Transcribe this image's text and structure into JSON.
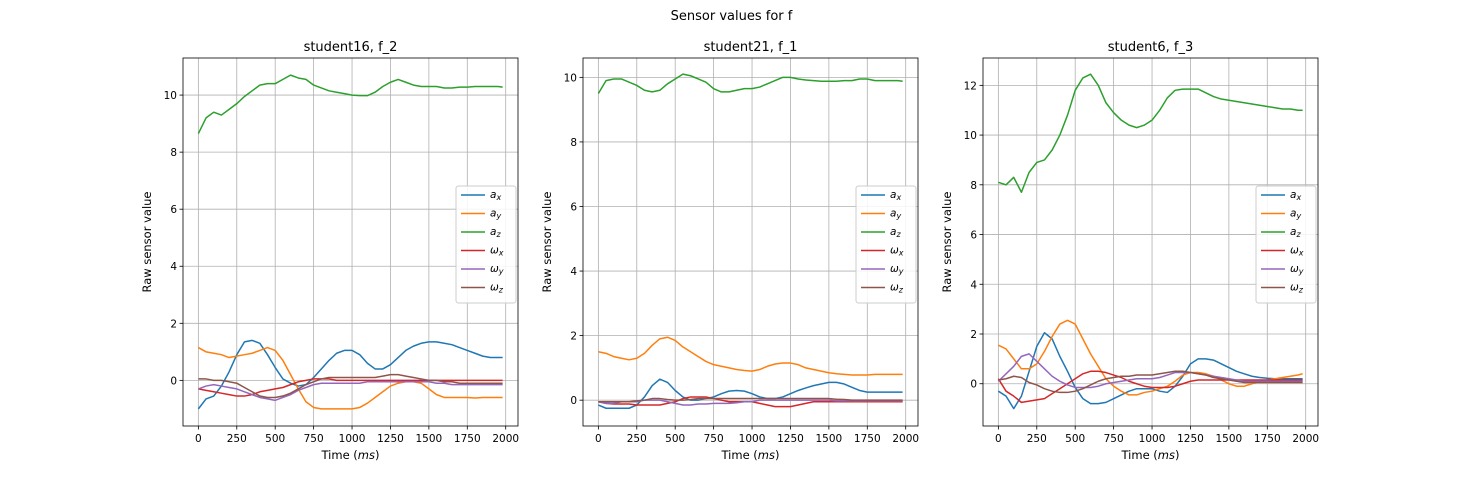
{
  "suptitle": "Sensor values for f",
  "colors": {
    "a_x": "#1f77b4",
    "a_y": "#ff7f0e",
    "a_z": "#2ca02c",
    "w_x": "#d62728",
    "w_y": "#9467bd",
    "w_z": "#8c564b"
  },
  "chart_data": [
    {
      "type": "line",
      "title": "student16, f_2",
      "xlabel": "Time (ms)",
      "ylabel": "Raw sensor value",
      "xlim": [
        -100,
        2080
      ],
      "ylim": [
        -1.6,
        11.3
      ],
      "xticks": [
        0,
        250,
        500,
        750,
        1000,
        1250,
        1500,
        1750,
        2000
      ],
      "yticks": [
        0,
        2,
        4,
        6,
        8,
        10
      ],
      "grid": true,
      "legend": "center-right",
      "x": [
        0,
        50,
        100,
        150,
        200,
        250,
        300,
        350,
        400,
        450,
        500,
        550,
        600,
        650,
        700,
        750,
        800,
        850,
        900,
        950,
        1000,
        1050,
        1100,
        1150,
        1200,
        1250,
        1300,
        1350,
        1400,
        1450,
        1500,
        1550,
        1600,
        1650,
        1700,
        1750,
        1800,
        1850,
        1900,
        1950,
        1980
      ],
      "series": [
        {
          "name": "a_x",
          "values": [
            -1.0,
            -0.65,
            -0.55,
            -0.2,
            0.3,
            0.9,
            1.35,
            1.4,
            1.3,
            0.9,
            0.45,
            0.05,
            -0.1,
            -0.2,
            -0.15,
            0.1,
            0.4,
            0.7,
            0.95,
            1.05,
            1.05,
            0.9,
            0.6,
            0.4,
            0.4,
            0.55,
            0.8,
            1.05,
            1.2,
            1.3,
            1.35,
            1.35,
            1.3,
            1.25,
            1.15,
            1.05,
            0.95,
            0.85,
            0.8,
            0.8,
            0.8
          ]
        },
        {
          "name": "a_y",
          "values": [
            1.15,
            1.0,
            0.95,
            0.9,
            0.8,
            0.85,
            0.9,
            0.95,
            1.05,
            1.15,
            1.05,
            0.7,
            0.2,
            -0.3,
            -0.75,
            -0.95,
            -1.0,
            -1.0,
            -1.0,
            -1.0,
            -1.0,
            -0.95,
            -0.8,
            -0.6,
            -0.4,
            -0.2,
            -0.1,
            -0.05,
            -0.05,
            -0.1,
            -0.3,
            -0.5,
            -0.6,
            -0.6,
            -0.6,
            -0.6,
            -0.62,
            -0.6,
            -0.6,
            -0.6,
            -0.6
          ]
        },
        {
          "name": "a_z",
          "values": [
            8.65,
            9.2,
            9.4,
            9.3,
            9.5,
            9.7,
            9.95,
            10.15,
            10.35,
            10.4,
            10.4,
            10.55,
            10.7,
            10.6,
            10.55,
            10.35,
            10.25,
            10.15,
            10.1,
            10.05,
            10.0,
            9.98,
            9.98,
            10.1,
            10.3,
            10.45,
            10.55,
            10.45,
            10.35,
            10.3,
            10.3,
            10.3,
            10.25,
            10.25,
            10.28,
            10.28,
            10.3,
            10.3,
            10.3,
            10.3,
            10.28
          ]
        },
        {
          "name": "w_x",
          "values": [
            -0.3,
            -0.35,
            -0.4,
            -0.45,
            -0.5,
            -0.55,
            -0.55,
            -0.5,
            -0.4,
            -0.35,
            -0.3,
            -0.25,
            -0.15,
            -0.05,
            0.0,
            0.05,
            0.05,
            0.05,
            0.0,
            0.0,
            0.0,
            0.0,
            0.0,
            0.0,
            0.0,
            0.0,
            0.0,
            0.0,
            0.0,
            0.0,
            0.0,
            0.0,
            0.0,
            0.0,
            0.0,
            0.0,
            0.0,
            0.0,
            0.0,
            0.0,
            0.0
          ]
        },
        {
          "name": "w_y",
          "values": [
            -0.3,
            -0.2,
            -0.15,
            -0.2,
            -0.25,
            -0.3,
            -0.4,
            -0.5,
            -0.6,
            -0.65,
            -0.7,
            -0.6,
            -0.5,
            -0.35,
            -0.25,
            -0.15,
            -0.1,
            -0.1,
            -0.1,
            -0.1,
            -0.1,
            -0.1,
            -0.05,
            -0.05,
            -0.05,
            -0.05,
            -0.05,
            -0.05,
            -0.05,
            -0.05,
            -0.05,
            -0.1,
            -0.1,
            -0.15,
            -0.15,
            -0.15,
            -0.15,
            -0.15,
            -0.15,
            -0.15,
            -0.15
          ]
        },
        {
          "name": "w_z",
          "values": [
            0.05,
            0.05,
            0.0,
            0.0,
            -0.05,
            -0.1,
            -0.25,
            -0.4,
            -0.55,
            -0.6,
            -0.6,
            -0.55,
            -0.45,
            -0.3,
            -0.15,
            -0.05,
            0.05,
            0.1,
            0.1,
            0.1,
            0.1,
            0.1,
            0.1,
            0.1,
            0.15,
            0.2,
            0.2,
            0.15,
            0.1,
            0.05,
            0.0,
            0.0,
            -0.05,
            -0.05,
            -0.1,
            -0.1,
            -0.1,
            -0.1,
            -0.1,
            -0.1,
            -0.1
          ]
        }
      ]
    },
    {
      "type": "line",
      "title": "student21, f_1",
      "xlabel": "Time (ms)",
      "ylabel": "Raw sensor value",
      "xlim": [
        -100,
        2080
      ],
      "ylim": [
        -0.8,
        10.6
      ],
      "xticks": [
        0,
        250,
        500,
        750,
        1000,
        1250,
        1500,
        1750,
        2000
      ],
      "yticks": [
        0,
        2,
        4,
        6,
        8,
        10
      ],
      "grid": true,
      "legend": "center-right",
      "x": [
        0,
        50,
        100,
        150,
        200,
        250,
        300,
        350,
        400,
        450,
        500,
        550,
        600,
        650,
        700,
        750,
        800,
        850,
        900,
        950,
        1000,
        1050,
        1100,
        1150,
        1200,
        1250,
        1300,
        1350,
        1400,
        1450,
        1500,
        1550,
        1600,
        1650,
        1700,
        1750,
        1800,
        1850,
        1900,
        1950,
        1980
      ],
      "series": [
        {
          "name": "a_x",
          "values": [
            -0.15,
            -0.25,
            -0.25,
            -0.25,
            -0.25,
            -0.15,
            0.1,
            0.45,
            0.65,
            0.55,
            0.3,
            0.1,
            0.0,
            0.0,
            0.05,
            0.1,
            0.2,
            0.28,
            0.3,
            0.28,
            0.2,
            0.1,
            0.05,
            0.05,
            0.1,
            0.2,
            0.3,
            0.38,
            0.45,
            0.5,
            0.55,
            0.55,
            0.5,
            0.4,
            0.3,
            0.25,
            0.25,
            0.25,
            0.25,
            0.25,
            0.25
          ]
        },
        {
          "name": "a_y",
          "values": [
            1.5,
            1.45,
            1.35,
            1.3,
            1.25,
            1.3,
            1.45,
            1.7,
            1.9,
            1.95,
            1.85,
            1.65,
            1.5,
            1.35,
            1.2,
            1.1,
            1.05,
            1.0,
            0.95,
            0.92,
            0.9,
            0.95,
            1.05,
            1.12,
            1.15,
            1.15,
            1.1,
            1.0,
            0.95,
            0.9,
            0.85,
            0.82,
            0.8,
            0.78,
            0.78,
            0.78,
            0.8,
            0.8,
            0.8,
            0.8,
            0.8
          ]
        },
        {
          "name": "a_z",
          "values": [
            9.5,
            9.9,
            9.95,
            9.95,
            9.85,
            9.75,
            9.6,
            9.55,
            9.6,
            9.8,
            9.95,
            10.1,
            10.05,
            9.95,
            9.85,
            9.65,
            9.55,
            9.55,
            9.6,
            9.65,
            9.65,
            9.7,
            9.8,
            9.9,
            10.0,
            10.0,
            9.95,
            9.92,
            9.9,
            9.88,
            9.88,
            9.88,
            9.9,
            9.9,
            9.95,
            9.95,
            9.9,
            9.9,
            9.9,
            9.9,
            9.88
          ]
        },
        {
          "name": "w_x",
          "values": [
            -0.05,
            -0.1,
            -0.12,
            -0.12,
            -0.12,
            -0.15,
            -0.15,
            -0.15,
            -0.15,
            -0.1,
            -0.05,
            0.05,
            0.1,
            0.1,
            0.1,
            0.05,
            0.0,
            -0.05,
            -0.05,
            -0.05,
            -0.05,
            -0.1,
            -0.15,
            -0.2,
            -0.2,
            -0.2,
            -0.15,
            -0.1,
            -0.05,
            -0.05,
            -0.05,
            -0.05,
            -0.05,
            -0.05,
            -0.05,
            -0.05,
            -0.05,
            -0.05,
            -0.05,
            -0.05,
            -0.05
          ]
        },
        {
          "name": "w_y",
          "values": [
            -0.05,
            -0.1,
            -0.1,
            -0.05,
            -0.05,
            -0.05,
            0.0,
            0.0,
            0.0,
            -0.05,
            -0.1,
            -0.15,
            -0.15,
            -0.12,
            -0.12,
            -0.1,
            -0.1,
            -0.1,
            -0.08,
            -0.05,
            -0.05,
            0.0,
            0.0,
            0.0,
            0.0,
            0.0,
            0.0,
            0.0,
            0.0,
            0.0,
            0.0,
            -0.02,
            -0.02,
            -0.02,
            -0.02,
            -0.02,
            -0.02,
            -0.02,
            -0.02,
            -0.02,
            -0.02
          ]
        },
        {
          "name": "w_z",
          "values": [
            -0.05,
            -0.05,
            -0.05,
            -0.05,
            -0.05,
            -0.02,
            0.0,
            0.05,
            0.05,
            0.02,
            0.0,
            0.0,
            0.02,
            0.05,
            0.05,
            0.05,
            0.05,
            0.05,
            0.05,
            0.05,
            0.05,
            0.05,
            0.05,
            0.05,
            0.05,
            0.05,
            0.05,
            0.05,
            0.05,
            0.05,
            0.05,
            0.03,
            0.02,
            0.0,
            0.0,
            0.0,
            0.0,
            0.0,
            0.0,
            0.0,
            0.0
          ]
        }
      ]
    },
    {
      "type": "line",
      "title": "student6, f_3",
      "xlabel": "Time (ms)",
      "ylabel": "Raw sensor value",
      "xlim": [
        -100,
        2080
      ],
      "ylim": [
        -1.7,
        13.1
      ],
      "xticks": [
        0,
        250,
        500,
        750,
        1000,
        1250,
        1500,
        1750,
        2000
      ],
      "yticks": [
        0,
        2,
        4,
        6,
        8,
        10,
        12
      ],
      "grid": true,
      "legend": "center-right",
      "x": [
        0,
        50,
        100,
        150,
        200,
        250,
        300,
        350,
        400,
        450,
        500,
        550,
        600,
        650,
        700,
        750,
        800,
        850,
        900,
        950,
        1000,
        1050,
        1100,
        1150,
        1200,
        1250,
        1300,
        1350,
        1400,
        1450,
        1500,
        1550,
        1600,
        1650,
        1700,
        1750,
        1800,
        1850,
        1900,
        1950,
        1980
      ],
      "series": [
        {
          "name": "a_x",
          "values": [
            -0.3,
            -0.5,
            -1.0,
            -0.5,
            0.5,
            1.5,
            2.05,
            1.8,
            1.1,
            0.5,
            -0.15,
            -0.6,
            -0.8,
            -0.8,
            -0.75,
            -0.6,
            -0.45,
            -0.3,
            -0.2,
            -0.2,
            -0.2,
            -0.3,
            -0.35,
            -0.1,
            0.3,
            0.8,
            1.0,
            1.0,
            0.95,
            0.8,
            0.65,
            0.5,
            0.4,
            0.3,
            0.25,
            0.22,
            0.2,
            0.2,
            0.2,
            0.2,
            0.2
          ]
        },
        {
          "name": "a_y",
          "values": [
            1.55,
            1.4,
            1.0,
            0.6,
            0.6,
            0.8,
            1.3,
            1.9,
            2.4,
            2.55,
            2.4,
            1.8,
            1.2,
            0.7,
            0.2,
            -0.1,
            -0.3,
            -0.45,
            -0.45,
            -0.35,
            -0.3,
            -0.2,
            -0.1,
            0.1,
            0.35,
            0.45,
            0.45,
            0.4,
            0.3,
            0.15,
            0.0,
            -0.1,
            -0.1,
            0.0,
            0.1,
            0.15,
            0.2,
            0.25,
            0.3,
            0.35,
            0.4
          ]
        },
        {
          "name": "a_z",
          "values": [
            8.1,
            8.0,
            8.3,
            7.7,
            8.5,
            8.9,
            9.0,
            9.4,
            10.0,
            10.8,
            11.8,
            12.3,
            12.45,
            12.0,
            11.3,
            10.9,
            10.6,
            10.4,
            10.3,
            10.4,
            10.6,
            11.0,
            11.5,
            11.8,
            11.85,
            11.85,
            11.85,
            11.7,
            11.55,
            11.45,
            11.4,
            11.35,
            11.3,
            11.25,
            11.2,
            11.15,
            11.1,
            11.05,
            11.05,
            11.0,
            11.0
          ]
        },
        {
          "name": "w_x",
          "values": [
            0.2,
            -0.3,
            -0.5,
            -0.75,
            -0.7,
            -0.65,
            -0.6,
            -0.4,
            -0.2,
            0.0,
            0.2,
            0.4,
            0.5,
            0.5,
            0.45,
            0.35,
            0.25,
            0.1,
            0.0,
            -0.1,
            -0.15,
            -0.15,
            -0.15,
            -0.1,
            0.0,
            0.1,
            0.15,
            0.15,
            0.15,
            0.15,
            0.15,
            0.15,
            0.15,
            0.15,
            0.15,
            0.15,
            0.15,
            0.15,
            0.15,
            0.15,
            0.15
          ]
        },
        {
          "name": "w_y",
          "values": [
            0.1,
            0.4,
            0.7,
            1.1,
            1.2,
            0.9,
            0.6,
            0.3,
            0.1,
            -0.05,
            -0.15,
            -0.15,
            -0.15,
            -0.1,
            0.0,
            0.05,
            0.1,
            0.15,
            0.2,
            0.2,
            0.2,
            0.25,
            0.35,
            0.45,
            0.45,
            0.45,
            0.4,
            0.35,
            0.3,
            0.25,
            0.2,
            0.15,
            0.1,
            0.1,
            0.1,
            0.1,
            0.1,
            0.1,
            0.1,
            0.1,
            0.1
          ]
        },
        {
          "name": "w_z",
          "values": [
            0.15,
            0.2,
            0.3,
            0.25,
            0.05,
            -0.05,
            -0.2,
            -0.3,
            -0.35,
            -0.35,
            -0.3,
            -0.2,
            -0.05,
            0.1,
            0.2,
            0.25,
            0.3,
            0.3,
            0.35,
            0.35,
            0.35,
            0.4,
            0.45,
            0.5,
            0.5,
            0.45,
            0.4,
            0.35,
            0.25,
            0.2,
            0.15,
            0.1,
            0.05,
            0.05,
            0.05,
            0.05,
            0.05,
            0.05,
            0.05,
            0.05,
            0.05
          ]
        }
      ]
    }
  ]
}
